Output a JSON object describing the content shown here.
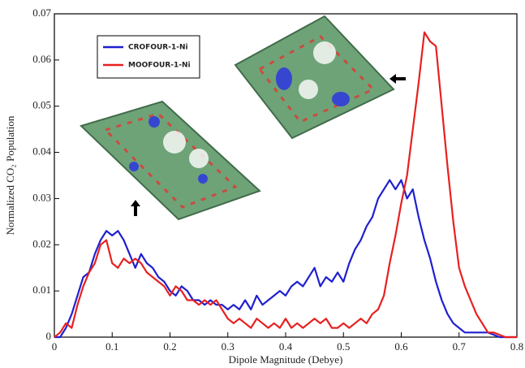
{
  "chart_data": {
    "type": "line",
    "x_label": "Dipole Magnitude (Debye)",
    "y_label": "Normalized CO₂ Population",
    "x": [
      0,
      0.01,
      0.02,
      0.03,
      0.04,
      0.05,
      0.06,
      0.07,
      0.08,
      0.09,
      0.1,
      0.11,
      0.12,
      0.13,
      0.14,
      0.15,
      0.16,
      0.17,
      0.18,
      0.19,
      0.2,
      0.21,
      0.22,
      0.23,
      0.24,
      0.25,
      0.26,
      0.27,
      0.28,
      0.29,
      0.3,
      0.31,
      0.32,
      0.33,
      0.34,
      0.35,
      0.36,
      0.37,
      0.38,
      0.39,
      0.4,
      0.41,
      0.42,
      0.43,
      0.44,
      0.45,
      0.46,
      0.47,
      0.48,
      0.49,
      0.5,
      0.51,
      0.52,
      0.53,
      0.54,
      0.55,
      0.56,
      0.57,
      0.58,
      0.59,
      0.6,
      0.61,
      0.62,
      0.63,
      0.64,
      0.65,
      0.66,
      0.67,
      0.68,
      0.69,
      0.7,
      0.71,
      0.72,
      0.73,
      0.74,
      0.75,
      0.76,
      0.77,
      0.78,
      0.79,
      0.8
    ],
    "series": [
      {
        "name": "CROFOUR-1-Ni",
        "color": "#1f1fd0",
        "values": [
          0,
          0,
          0.002,
          0.005,
          0.009,
          0.013,
          0.014,
          0.018,
          0.021,
          0.023,
          0.022,
          0.023,
          0.021,
          0.018,
          0.015,
          0.018,
          0.016,
          0.015,
          0.013,
          0.012,
          0.01,
          0.009,
          0.011,
          0.01,
          0.008,
          0.008,
          0.007,
          0.008,
          0.007,
          0.007,
          0.006,
          0.007,
          0.006,
          0.008,
          0.006,
          0.009,
          0.007,
          0.008,
          0.009,
          0.01,
          0.009,
          0.011,
          0.012,
          0.011,
          0.013,
          0.015,
          0.011,
          0.013,
          0.012,
          0.014,
          0.012,
          0.016,
          0.019,
          0.021,
          0.024,
          0.026,
          0.03,
          0.032,
          0.034,
          0.032,
          0.034,
          0.03,
          0.032,
          0.026,
          0.021,
          0.017,
          0.012,
          0.008,
          0.005,
          0.003,
          0.002,
          0.001,
          0.001,
          0.001,
          0.001,
          0.001,
          0.0005,
          0,
          0,
          0,
          0
        ]
      },
      {
        "name": "MOOFOUR-1-Ni",
        "color": "#e82020",
        "values": [
          0,
          0.001,
          0.003,
          0.002,
          0.007,
          0.011,
          0.014,
          0.016,
          0.02,
          0.021,
          0.016,
          0.015,
          0.017,
          0.016,
          0.017,
          0.016,
          0.014,
          0.013,
          0.012,
          0.011,
          0.009,
          0.011,
          0.01,
          0.008,
          0.008,
          0.007,
          0.008,
          0.007,
          0.008,
          0.006,
          0.004,
          0.003,
          0.004,
          0.003,
          0.002,
          0.004,
          0.003,
          0.002,
          0.003,
          0.002,
          0.004,
          0.002,
          0.003,
          0.002,
          0.003,
          0.004,
          0.003,
          0.004,
          0.002,
          0.002,
          0.003,
          0.002,
          0.003,
          0.004,
          0.003,
          0.005,
          0.006,
          0.009,
          0.016,
          0.022,
          0.029,
          0.035,
          0.045,
          0.055,
          0.066,
          0.064,
          0.063,
          0.05,
          0.037,
          0.025,
          0.015,
          0.011,
          0.008,
          0.005,
          0.003,
          0.001,
          0.001,
          0.0005,
          0,
          0,
          0
        ]
      }
    ],
    "xlim": [
      0,
      0.8
    ],
    "xticks": [
      0,
      0.1,
      0.2,
      0.3,
      0.4,
      0.5,
      0.6,
      0.7,
      0.8
    ],
    "ylim": [
      0,
      0.07
    ],
    "yticks": [
      0,
      0.01,
      0.02,
      0.03,
      0.04,
      0.05,
      0.06,
      0.07
    ],
    "grid": false,
    "legend": "upper left"
  }
}
